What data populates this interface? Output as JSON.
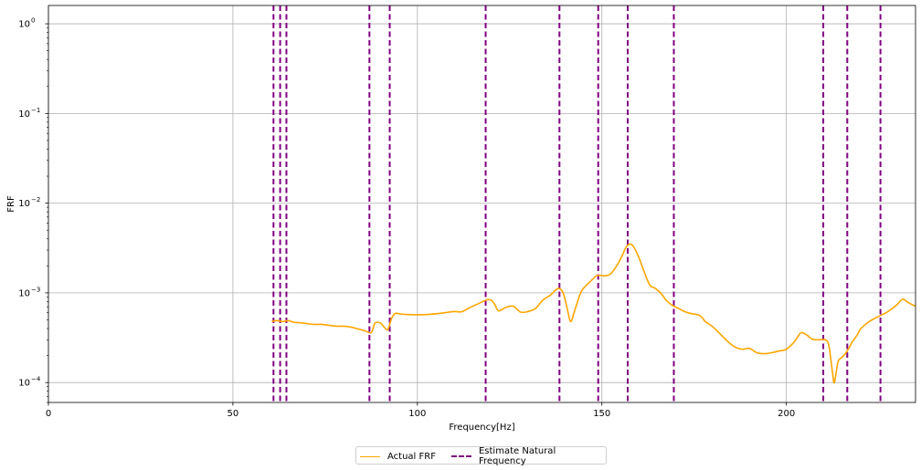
{
  "chart_data": {
    "type": "line",
    "xlabel": "Frequency[Hz]",
    "ylabel": "FRF",
    "xlim": [
      0,
      235
    ],
    "ylim": [
      6e-05,
      1.6
    ],
    "yscale": "log",
    "grid": true,
    "legend_position": "bottom-center (below plot)",
    "x_ticks": [
      0,
      50,
      100,
      150,
      200
    ],
    "x_tick_labels": [
      "0",
      "50",
      "100",
      "150",
      "200"
    ],
    "y_ticks": [
      0.0001,
      0.001,
      0.01,
      0.1,
      1
    ],
    "y_tick_labels": [
      [
        "10",
        "−4"
      ],
      [
        "10",
        "−3"
      ],
      [
        "10",
        "−2"
      ],
      [
        "10",
        "−1"
      ],
      [
        "10",
        "0"
      ]
    ],
    "series": [
      {
        "name": "Actual FRF",
        "color": "#ffa500",
        "style": "solid",
        "x": [
          60.5,
          62,
          63.5,
          65,
          66.5,
          68,
          70,
          72,
          74,
          76,
          78,
          80,
          82,
          84,
          86,
          87.5,
          88.5,
          90,
          91,
          92,
          93,
          94,
          95,
          97,
          100,
          103,
          106,
          108,
          110,
          112,
          114,
          116,
          118,
          119,
          120,
          121,
          122,
          124,
          126,
          128,
          130,
          132,
          134,
          136,
          137.5,
          138.5,
          139.5,
          140.5,
          141.5,
          142.5,
          143.5,
          144.5,
          146,
          147.5,
          148.5,
          149.5,
          151,
          152.5,
          154,
          155.5,
          156.5,
          157.5,
          158.5,
          160,
          161.5,
          163,
          164.5,
          166,
          167.5,
          169,
          170.5,
          172,
          174,
          176,
          177,
          178,
          180,
          182,
          184,
          186,
          188,
          190,
          192,
          194,
          196,
          198,
          200,
          202,
          203,
          204,
          205.5,
          207,
          209,
          210.5,
          211.5,
          212.5,
          213,
          214,
          215,
          216,
          217,
          218,
          219,
          220,
          221,
          222.5,
          224,
          225.5,
          227,
          228.5,
          230,
          231.5,
          233,
          235
        ],
        "y": [
          0.00048,
          0.00049,
          0.00048,
          0.00049,
          0.00047,
          0.000465,
          0.000455,
          0.000445,
          0.000445,
          0.000435,
          0.000425,
          0.000425,
          0.000415,
          0.000395,
          0.000375,
          0.00036,
          0.00046,
          0.00046,
          0.000415,
          0.00039,
          0.00052,
          0.00059,
          0.000585,
          0.000575,
          0.00057,
          0.000575,
          0.00059,
          0.000605,
          0.00062,
          0.000615,
          0.00068,
          0.00074,
          0.00081,
          0.00084,
          0.00083,
          0.00074,
          0.00063,
          0.00069,
          0.00071,
          0.00061,
          0.00062,
          0.00067,
          0.00083,
          0.00094,
          0.00108,
          0.00112,
          0.001,
          0.0007,
          0.00048,
          0.00061,
          0.00082,
          0.00105,
          0.00124,
          0.00142,
          0.00155,
          0.00157,
          0.00155,
          0.00165,
          0.002,
          0.0026,
          0.0032,
          0.0035,
          0.0033,
          0.0025,
          0.0017,
          0.00122,
          0.00112,
          0.00099,
          0.00082,
          0.00073,
          0.00068,
          0.00063,
          0.00059,
          0.00057,
          0.00054,
          0.00048,
          0.00042,
          0.00035,
          0.00029,
          0.00025,
          0.000235,
          0.00024,
          0.000215,
          0.00021,
          0.000215,
          0.000225,
          0.000235,
          0.00028,
          0.00032,
          0.00036,
          0.00034,
          0.000305,
          0.0003,
          0.0003,
          0.00026,
          0.00013,
          0.0001,
          0.00017,
          0.00019,
          0.00021,
          0.000245,
          0.00029,
          0.00033,
          0.00039,
          0.00043,
          0.00048,
          0.00052,
          0.00056,
          0.0006,
          0.00066,
          0.00074,
          0.00085,
          0.00078,
          0.00071
        ]
      },
      {
        "name": "Estimate Natural Frequency",
        "color": "#800080",
        "style": "dashed",
        "vlines": [
          61.0,
          62.8,
          64.5,
          87.0,
          92.5,
          118.5,
          138.5,
          149.0,
          157.0,
          169.5,
          210.0,
          216.5,
          225.5
        ]
      }
    ]
  }
}
